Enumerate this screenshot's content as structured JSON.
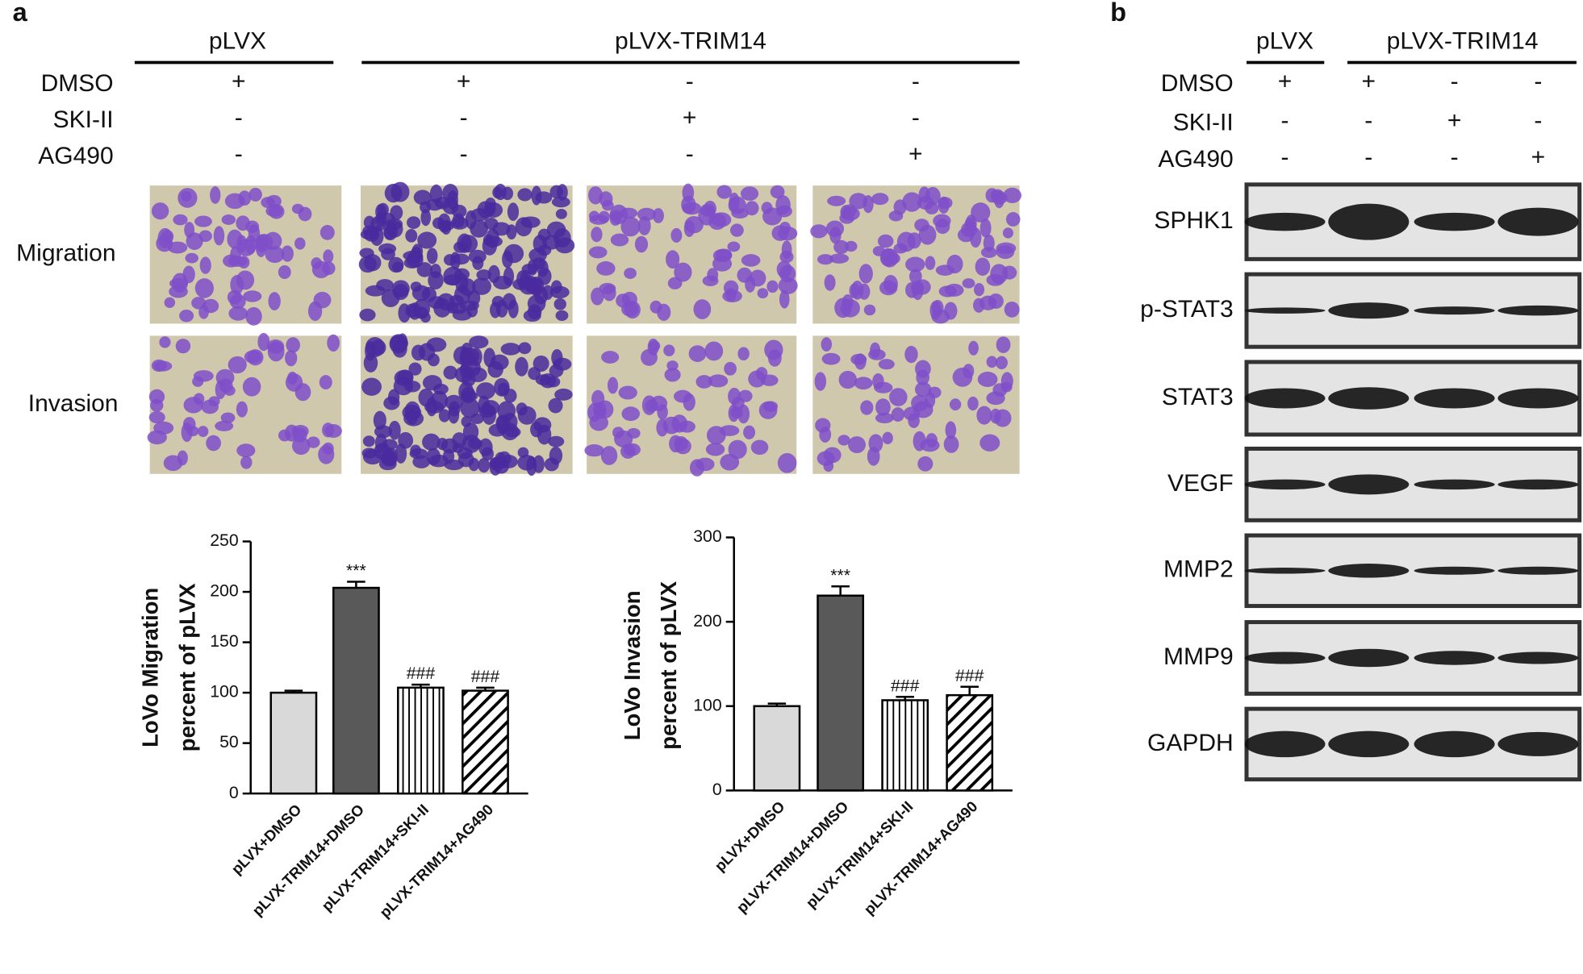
{
  "panel_a": {
    "letter": "a",
    "groups": [
      "pLVX",
      "pLVX-TRIM14"
    ],
    "treatments": [
      {
        "name": "DMSO",
        "signs": [
          "+",
          "+",
          "-",
          "-"
        ]
      },
      {
        "name": "SKI-II",
        "signs": [
          "-",
          "-",
          "+",
          "-"
        ]
      },
      {
        "name": "AG490",
        "signs": [
          "-",
          "-",
          "-",
          "+"
        ]
      }
    ],
    "rows": [
      "Migration",
      "Invasion"
    ]
  },
  "panel_b": {
    "letter": "b",
    "groups": [
      "pLVX",
      "pLVX-TRIM14"
    ],
    "treatments": [
      {
        "name": "DMSO",
        "signs": [
          "+",
          "+",
          "-",
          "-"
        ]
      },
      {
        "name": "SKI-II",
        "signs": [
          "-",
          "-",
          "+",
          "-"
        ]
      },
      {
        "name": "AG490",
        "signs": [
          "-",
          "-",
          "-",
          "+"
        ]
      }
    ],
    "blots": [
      "SPHK1",
      "p-STAT3",
      "STAT3",
      "VEGF",
      "MMP2",
      "MMP9",
      "GAPDH"
    ]
  },
  "chart_data": [
    {
      "type": "bar",
      "y_label": [
        "LoVo Migration",
        "percent of pLVX"
      ],
      "categories": [
        "pLVX+DMSO",
        "pLVX-TRIM14+DMSO",
        "pLVX-TRIM14+SKI-II",
        "pLVX-TRIM14+AG490"
      ],
      "values": [
        100,
        204,
        105,
        102
      ],
      "errors": [
        2,
        6,
        3,
        3
      ],
      "annotations": [
        null,
        "***",
        "###",
        "###"
      ],
      "colors": [
        "#d9d9d9",
        "#595959",
        "#ffffff",
        "#ffffff"
      ],
      "patterns": [
        "solid",
        "solid",
        "vertical",
        "diagonal"
      ],
      "ylim": [
        0,
        250
      ],
      "yticks": [
        0,
        50,
        100,
        150,
        200,
        250
      ]
    },
    {
      "type": "bar",
      "y_label": [
        "LoVo Invasion",
        "percent of pLVX"
      ],
      "categories": [
        "pLVX+DMSO",
        "pLVX-TRIM14+DMSO",
        "pLVX-TRIM14+SKI-II",
        "pLVX-TRIM14+AG490"
      ],
      "values": [
        100,
        231,
        107,
        113
      ],
      "errors": [
        3,
        11,
        4,
        10
      ],
      "annotations": [
        null,
        "***",
        "###",
        "###"
      ],
      "colors": [
        "#d9d9d9",
        "#595959",
        "#ffffff",
        "#ffffff"
      ],
      "patterns": [
        "solid",
        "solid",
        "vertical",
        "diagonal"
      ],
      "ylim": [
        0,
        300
      ],
      "yticks": [
        0,
        100,
        200,
        300
      ]
    }
  ]
}
